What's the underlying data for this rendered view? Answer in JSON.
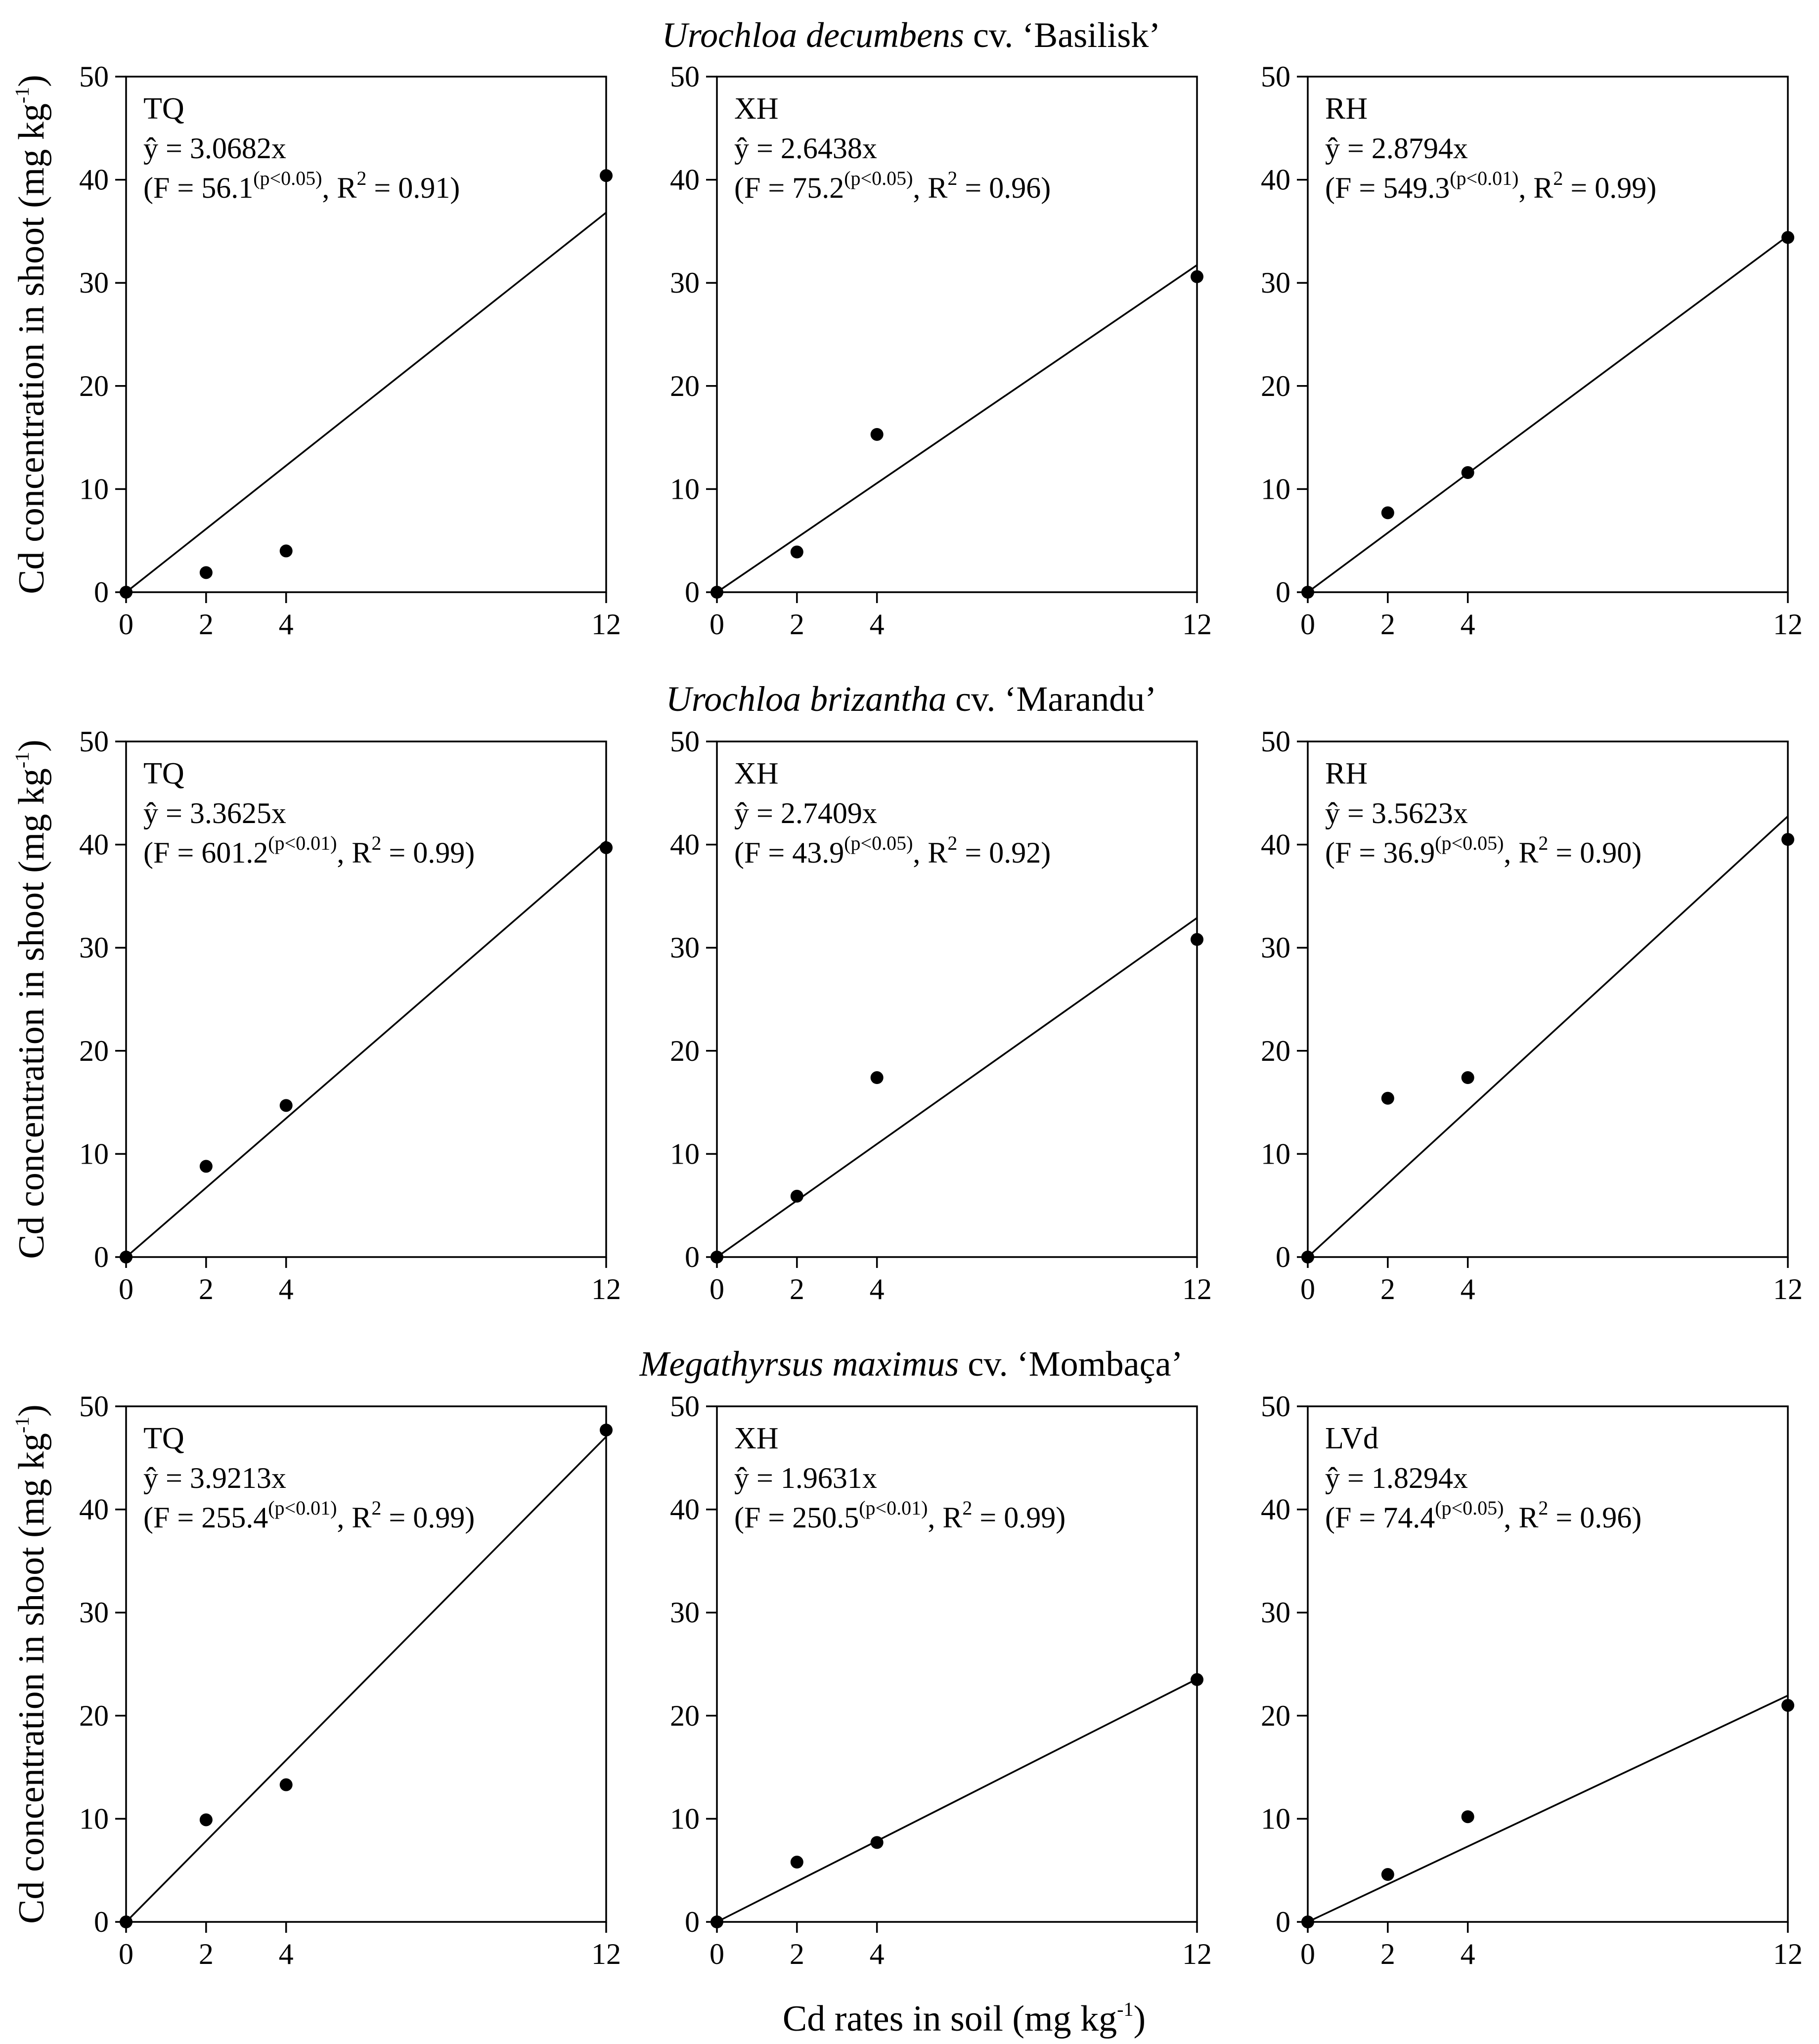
{
  "figure": {
    "y_axis_label": "Cd concentration in shoot (mg kg",
    "y_axis_label_sup": "-1",
    "y_axis_label_end": ")",
    "x_axis_label": "Cd rates in soil (mg kg",
    "x_axis_label_sup": "-1",
    "x_axis_label_end": ")",
    "eq_prefix": "ŷ = ",
    "f_prefix": "(F = ",
    "r2_prefix": ", R",
    "r2_sup": "2",
    "r2_eq": " = ",
    "close_paren": ")"
  },
  "rows": [
    {
      "species": "Urochloa decumbens",
      "cultivar": " cv. ‘Basilisk’"
    },
    {
      "species": "Urochloa brizantha",
      "cultivar": " cv. ‘Marandu’"
    },
    {
      "species": "Megathyrsus maximus",
      "cultivar": " cv. ‘Mombaça’"
    }
  ],
  "chart_data": [
    {
      "type": "scatter",
      "title": "TQ",
      "species": "Urochloa decumbens cv. ‘Basilisk’",
      "x": [
        0,
        2,
        4,
        12
      ],
      "y": [
        0,
        1.9,
        4.0,
        40.4
      ],
      "fit_slope": 3.0682,
      "fit_label": "3.0682x",
      "f_value": "56.1",
      "p_label": "(p<0.05)",
      "r2": "0.91",
      "xticks": [
        "0",
        "2",
        "4",
        "12"
      ],
      "yticks": [
        "0",
        "10",
        "20",
        "30",
        "40",
        "50"
      ],
      "xlim": [
        0,
        12
      ],
      "ylim": [
        0,
        50
      ],
      "xlabel": "Cd rates in soil (mg kg-1)",
      "ylabel": "Cd concentration in shoot (mg kg-1)"
    },
    {
      "type": "scatter",
      "title": "XH",
      "species": "Urochloa decumbens cv. ‘Basilisk’",
      "x": [
        0,
        2,
        4,
        12
      ],
      "y": [
        0,
        3.9,
        15.3,
        30.6
      ],
      "fit_slope": 2.6438,
      "fit_label": "2.6438x",
      "f_value": "75.2",
      "p_label": "(p<0.05)",
      "r2": "0.96",
      "xticks": [
        "0",
        "2",
        "4",
        "12"
      ],
      "yticks": [
        "0",
        "10",
        "20",
        "30",
        "40",
        "50"
      ],
      "xlim": [
        0,
        12
      ],
      "ylim": [
        0,
        50
      ],
      "xlabel": "Cd rates in soil (mg kg-1)",
      "ylabel": "Cd concentration in shoot (mg kg-1)"
    },
    {
      "type": "scatter",
      "title": "RH",
      "species": "Urochloa decumbens cv. ‘Basilisk’",
      "x": [
        0,
        2,
        4,
        12
      ],
      "y": [
        0,
        7.7,
        11.6,
        34.4
      ],
      "fit_slope": 2.8794,
      "fit_label": "2.8794x",
      "f_value": "549.3",
      "p_label": "(p<0.01)",
      "r2": "0.99",
      "xticks": [
        "0",
        "2",
        "4",
        "12"
      ],
      "yticks": [
        "0",
        "10",
        "20",
        "30",
        "40",
        "50"
      ],
      "xlim": [
        0,
        12
      ],
      "ylim": [
        0,
        50
      ],
      "xlabel": "Cd rates in soil (mg kg-1)",
      "ylabel": "Cd concentration in shoot (mg kg-1)"
    },
    {
      "type": "scatter",
      "title": "TQ",
      "species": "Urochloa brizantha cv. ‘Marandu’",
      "x": [
        0,
        2,
        4,
        12
      ],
      "y": [
        0,
        8.8,
        14.7,
        39.7
      ],
      "fit_slope": 3.3625,
      "fit_label": "3.3625x",
      "f_value": "601.2",
      "p_label": "(p<0.01)",
      "r2": "0.99",
      "xticks": [
        "0",
        "2",
        "4",
        "12"
      ],
      "yticks": [
        "0",
        "10",
        "20",
        "30",
        "40",
        "50"
      ],
      "xlim": [
        0,
        12
      ],
      "ylim": [
        0,
        50
      ],
      "xlabel": "Cd rates in soil (mg kg-1)",
      "ylabel": "Cd concentration in shoot (mg kg-1)"
    },
    {
      "type": "scatter",
      "title": "XH",
      "species": "Urochloa brizantha cv. ‘Marandu’",
      "x": [
        0,
        2,
        4,
        12
      ],
      "y": [
        0,
        5.9,
        17.4,
        30.8
      ],
      "fit_slope": 2.7409,
      "fit_label": "2.7409x",
      "f_value": "43.9",
      "p_label": "(p<0.05)",
      "r2": "0.92",
      "xticks": [
        "0",
        "2",
        "4",
        "12"
      ],
      "yticks": [
        "0",
        "10",
        "20",
        "30",
        "40",
        "50"
      ],
      "xlim": [
        0,
        12
      ],
      "ylim": [
        0,
        50
      ],
      "xlabel": "Cd rates in soil (mg kg-1)",
      "ylabel": "Cd concentration in shoot (mg kg-1)"
    },
    {
      "type": "scatter",
      "title": "RH",
      "species": "Urochloa brizantha cv. ‘Marandu’",
      "x": [
        0,
        2,
        4,
        12
      ],
      "y": [
        0,
        15.4,
        17.4,
        40.5
      ],
      "fit_slope": 3.5623,
      "fit_label": "3.5623x",
      "f_value": "36.9",
      "p_label": "(p<0.05)",
      "r2": "0.90",
      "xticks": [
        "0",
        "2",
        "4",
        "12"
      ],
      "yticks": [
        "0",
        "10",
        "20",
        "30",
        "40",
        "50"
      ],
      "xlim": [
        0,
        12
      ],
      "ylim": [
        0,
        50
      ],
      "xlabel": "Cd rates in soil (mg kg-1)",
      "ylabel": "Cd concentration in shoot (mg kg-1)"
    },
    {
      "type": "scatter",
      "title": "TQ",
      "species": "Megathyrsus maximus cv. ‘Mombaça’",
      "x": [
        0,
        2,
        4,
        12
      ],
      "y": [
        0,
        9.9,
        13.3,
        47.7
      ],
      "fit_slope": 3.9213,
      "fit_label": "3.9213x",
      "f_value": "255.4",
      "p_label": "(p<0.01)",
      "r2": "0.99",
      "xticks": [
        "0",
        "2",
        "4",
        "12"
      ],
      "yticks": [
        "0",
        "10",
        "20",
        "30",
        "40",
        "50"
      ],
      "xlim": [
        0,
        12
      ],
      "ylim": [
        0,
        50
      ],
      "xlabel": "Cd rates in soil (mg kg-1)",
      "ylabel": "Cd concentration in shoot (mg kg-1)"
    },
    {
      "type": "scatter",
      "title": "XH",
      "species": "Megathyrsus maximus cv. ‘Mombaça’",
      "x": [
        0,
        2,
        4,
        12
      ],
      "y": [
        0,
        5.8,
        7.7,
        23.5
      ],
      "fit_slope": 1.9631,
      "fit_label": "1.9631x",
      "f_value": "250.5",
      "p_label": "(p<0.01)",
      "r2": "0.99",
      "xticks": [
        "0",
        "2",
        "4",
        "12"
      ],
      "yticks": [
        "0",
        "10",
        "20",
        "30",
        "40",
        "50"
      ],
      "xlim": [
        0,
        12
      ],
      "ylim": [
        0,
        50
      ],
      "xlabel": "Cd rates in soil (mg kg-1)",
      "ylabel": "Cd concentration in shoot (mg kg-1)"
    },
    {
      "type": "scatter",
      "title": "LVd",
      "species": "Megathyrsus maximus cv. ‘Mombaça’",
      "x": [
        0,
        2,
        4,
        12
      ],
      "y": [
        0,
        4.6,
        10.2,
        21.0
      ],
      "fit_slope": 1.8294,
      "fit_label": "1.8294x",
      "f_value": "74.4",
      "p_label": "(p<0.05)",
      "r2": "0.96",
      "xticks": [
        "0",
        "2",
        "4",
        "12"
      ],
      "yticks": [
        "0",
        "10",
        "20",
        "30",
        "40",
        "50"
      ],
      "xlim": [
        0,
        12
      ],
      "ylim": [
        0,
        50
      ],
      "xlabel": "Cd rates in soil (mg kg-1)",
      "ylabel": "Cd concentration in shoot (mg kg-1)"
    }
  ]
}
